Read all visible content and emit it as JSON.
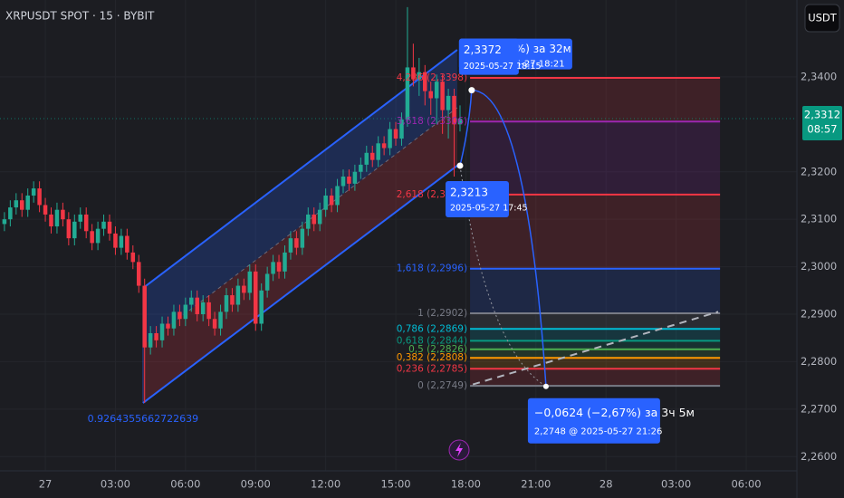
{
  "header": {
    "symbol": "XRPUSDT SPOT · 15 · BYBIT",
    "currency_button": "USDT"
  },
  "chart_data": {
    "type": "candlestick",
    "x": [
      -1.75,
      -1.5,
      -1.25,
      -1,
      -0.75,
      -0.5,
      -0.25,
      0,
      0.25,
      0.5,
      0.75,
      1,
      1.25,
      1.5,
      1.75,
      2,
      2.25,
      2.5,
      2.75,
      3,
      3.25,
      3.5,
      3.75,
      4,
      4.25,
      4.5,
      4.75,
      5,
      5.25,
      5.5,
      5.75,
      6,
      6.25,
      6.5,
      6.75,
      7,
      7.25,
      7.5,
      7.75,
      8,
      8.25,
      8.5,
      8.75,
      9,
      9.25,
      9.5,
      9.75,
      10,
      10.25,
      10.5,
      10.75,
      11,
      11.25,
      11.5,
      11.75,
      12,
      12.25,
      12.5,
      12.75,
      13,
      13.25,
      13.5,
      13.75,
      14,
      14.25,
      14.5,
      14.75,
      15,
      15.25,
      15.5,
      15.75,
      16,
      16.25,
      16.5,
      16.75,
      17,
      17.25,
      17.5,
      17.75
    ],
    "candles": [
      [
        2.309,
        2.3115,
        2.3075,
        2.31
      ],
      [
        2.31,
        2.314,
        2.3085,
        2.3125
      ],
      [
        2.3125,
        2.3155,
        2.311,
        2.314
      ],
      [
        2.314,
        2.3155,
        2.3105,
        2.312
      ],
      [
        2.312,
        2.3165,
        2.3105,
        2.315
      ],
      [
        2.315,
        2.318,
        2.3135,
        2.3165
      ],
      [
        2.3165,
        2.318,
        2.3115,
        2.313
      ],
      [
        2.313,
        2.3145,
        2.3095,
        2.311
      ],
      [
        2.311,
        2.3125,
        2.307,
        2.3085
      ],
      [
        2.3085,
        2.3135,
        2.307,
        2.312
      ],
      [
        2.312,
        2.3135,
        2.3085,
        2.31
      ],
      [
        2.31,
        2.3115,
        2.3045,
        2.306
      ],
      [
        2.306,
        2.311,
        2.3045,
        2.3095
      ],
      [
        2.3095,
        2.3125,
        2.308,
        2.311
      ],
      [
        2.311,
        2.3125,
        2.306,
        2.3075
      ],
      [
        2.3075,
        2.309,
        2.3035,
        2.305
      ],
      [
        2.305,
        2.3095,
        2.3035,
        2.308
      ],
      [
        2.308,
        2.311,
        2.3065,
        2.3095
      ],
      [
        2.3095,
        2.311,
        2.3055,
        2.307
      ],
      [
        2.307,
        2.3085,
        2.3025,
        2.304
      ],
      [
        2.304,
        2.308,
        2.3025,
        2.3065
      ],
      [
        2.3065,
        2.308,
        2.3015,
        2.303
      ],
      [
        2.303,
        2.3045,
        2.2995,
        2.301
      ],
      [
        2.301,
        2.3025,
        2.2945,
        2.296
      ],
      [
        2.296,
        2.2975,
        2.2713,
        2.283
      ],
      [
        2.283,
        2.2875,
        2.2815,
        2.286
      ],
      [
        2.286,
        2.2875,
        2.283,
        2.2845
      ],
      [
        2.2845,
        2.2895,
        2.283,
        2.288
      ],
      [
        2.288,
        2.2895,
        2.2855,
        2.287
      ],
      [
        2.287,
        2.292,
        2.2855,
        2.2905
      ],
      [
        2.2905,
        2.292,
        2.2875,
        2.289
      ],
      [
        2.289,
        2.2935,
        2.2875,
        2.292
      ],
      [
        2.292,
        2.295,
        2.2905,
        2.2935
      ],
      [
        2.2935,
        2.295,
        2.2885,
        2.29
      ],
      [
        2.29,
        2.294,
        2.2885,
        2.2925
      ],
      [
        2.2925,
        2.294,
        2.2875,
        2.289
      ],
      [
        2.289,
        2.2905,
        2.2855,
        2.287
      ],
      [
        2.287,
        2.292,
        2.2855,
        2.2905
      ],
      [
        2.2905,
        2.2955,
        2.289,
        2.294
      ],
      [
        2.294,
        2.2955,
        2.2905,
        2.292
      ],
      [
        2.292,
        2.2975,
        2.2905,
        2.296
      ],
      [
        2.296,
        2.2975,
        2.293,
        2.2945
      ],
      [
        2.2945,
        2.3005,
        2.293,
        2.299
      ],
      [
        2.299,
        2.3005,
        2.2865,
        2.288
      ],
      [
        2.288,
        2.2965,
        2.2865,
        2.295
      ],
      [
        2.295,
        2.3,
        2.2935,
        2.2985
      ],
      [
        2.2985,
        2.3025,
        2.297,
        2.301
      ],
      [
        2.301,
        2.3025,
        2.2975,
        2.299
      ],
      [
        2.299,
        2.3045,
        2.2975,
        2.303
      ],
      [
        2.303,
        2.3075,
        2.3015,
        2.306
      ],
      [
        2.306,
        2.3075,
        2.3025,
        2.304
      ],
      [
        2.304,
        2.3095,
        2.3025,
        2.308
      ],
      [
        2.308,
        2.3125,
        2.3065,
        2.311
      ],
      [
        2.311,
        2.3125,
        2.3075,
        2.309
      ],
      [
        2.309,
        2.3135,
        2.3075,
        2.312
      ],
      [
        2.312,
        2.3165,
        2.3105,
        2.315
      ],
      [
        2.315,
        2.3165,
        2.3115,
        2.313
      ],
      [
        2.313,
        2.3185,
        2.3115,
        2.317
      ],
      [
        2.317,
        2.3205,
        2.3155,
        2.319
      ],
      [
        2.319,
        2.3205,
        2.316,
        2.3175
      ],
      [
        2.3175,
        2.3215,
        2.316,
        2.32
      ],
      [
        2.32,
        2.323,
        2.3185,
        2.3215
      ],
      [
        2.3215,
        2.3255,
        2.32,
        2.324
      ],
      [
        2.324,
        2.3255,
        2.321,
        2.3225
      ],
      [
        2.3225,
        2.3275,
        2.321,
        2.326
      ],
      [
        2.326,
        2.3275,
        2.3235,
        2.325
      ],
      [
        2.325,
        2.3305,
        2.3235,
        2.329
      ],
      [
        2.329,
        2.3305,
        2.3255,
        2.327
      ],
      [
        2.327,
        2.3325,
        2.3255,
        2.331
      ],
      [
        2.331,
        2.3547,
        2.3295,
        2.342
      ],
      [
        2.342,
        2.347,
        2.338,
        2.3395
      ],
      [
        2.3395,
        2.344,
        2.336,
        2.341
      ],
      [
        2.341,
        2.3425,
        2.334,
        2.337
      ],
      [
        2.337,
        2.339,
        2.332,
        2.3355
      ],
      [
        2.3355,
        2.3405,
        2.33,
        2.339
      ],
      [
        2.339,
        2.3405,
        2.328,
        2.333
      ],
      [
        2.333,
        2.3375,
        2.327,
        2.336
      ],
      [
        2.336,
        2.3375,
        2.319,
        2.33
      ],
      [
        2.33,
        2.334,
        2.3285,
        2.3312
      ]
    ],
    "up_color": "#22ab94",
    "down_color": "#f23645",
    "xlim": [
      -1.94,
      32.17
    ],
    "xticks": [
      {
        "value": 0,
        "label": "27"
      },
      {
        "value": 3,
        "label": "03:00"
      },
      {
        "value": 6,
        "label": "06:00"
      },
      {
        "value": 9,
        "label": "09:00"
      },
      {
        "value": 12,
        "label": "12:00"
      },
      {
        "value": 15,
        "label": "15:00"
      },
      {
        "value": 18,
        "label": "18:00"
      },
      {
        "value": 21,
        "label": "21:00"
      },
      {
        "value": 24,
        "label": "28"
      },
      {
        "value": 27,
        "label": "03:00"
      },
      {
        "value": 30,
        "label": "06:00"
      }
    ],
    "ylim": [
      2.257,
      2.3562
    ],
    "yticks": [
      {
        "value": 2.34,
        "label": "2,3400"
      },
      {
        "value": 2.32,
        "label": "2,3200"
      },
      {
        "value": 2.31,
        "label": "2,3100"
      },
      {
        "value": 2.3,
        "label": "2,3000"
      },
      {
        "value": 2.29,
        "label": "2,2900"
      },
      {
        "value": 2.28,
        "label": "2,2800"
      },
      {
        "value": 2.27,
        "label": "2,2700"
      },
      {
        "value": 2.26,
        "label": "2,2600"
      }
    ],
    "last_price": {
      "value": 2.3312,
      "label": "2,3312",
      "countdown": "08:57",
      "color": "#089981"
    },
    "channel": {
      "x": [
        4.18,
        17.63
      ],
      "lower": [
        2.2713,
        2.3213
      ],
      "upper": [
        2.2955,
        2.3457
      ],
      "label": "0.9264355662722639",
      "color": "#2962ff"
    },
    "fib_x": [
      18.18,
      28.88
    ],
    "fib_levels": [
      {
        "label": "4,236 (2,3398)",
        "value": 2.3398,
        "color": "#f23645"
      },
      {
        "label": "3,618 (2,3306)",
        "value": 2.3306,
        "color": "#9c27b0"
      },
      {
        "label": "2,618 (2,3152)",
        "value": 2.3152,
        "color": "#f23645"
      },
      {
        "label": "1,618 (2,2996)",
        "value": 2.2996,
        "color": "#2962ff"
      },
      {
        "label": "1 (2,2902)",
        "value": 2.2902,
        "color": "#787b86"
      },
      {
        "label": "0,786 (2,2869)",
        "value": 2.2869,
        "color": "#00bcd4"
      },
      {
        "label": "0,618 (2,2844)",
        "value": 2.2844,
        "color": "#089981"
      },
      {
        "label": "0,5 (2,2826)",
        "value": 2.2826,
        "color": "#4caf50"
      },
      {
        "label": "0,382 (2,2808)",
        "value": 2.2808,
        "color": "#ff9800"
      },
      {
        "label": "0,236 (2,2785)",
        "value": 2.2785,
        "color": "#f23645"
      },
      {
        "label": "0 (2,2749)",
        "value": 2.2749,
        "color": "#787b86"
      }
    ],
    "measure": {
      "start": {
        "x": 17.75,
        "value": 2.3213,
        "label": "2,3213",
        "time": "2025-05-27 17:45"
      },
      "end": {
        "x": 18.25,
        "value": 2.3372,
        "label": "2,3372",
        "time": "2025-05-27 18:15"
      },
      "hidden_texts": [
        "%) за 32м",
        "5-27  18:21"
      ]
    },
    "projection": {
      "x": 21.43,
      "value": 2.2748,
      "change": "−0,0624 (−2,67%) за 3ч 5м",
      "detail": "2,2748 @ 2025-05-27  21:26"
    },
    "trend": {
      "x": [
        18.3,
        28.8
      ],
      "values": [
        2.2752,
        2.2905
      ]
    }
  }
}
